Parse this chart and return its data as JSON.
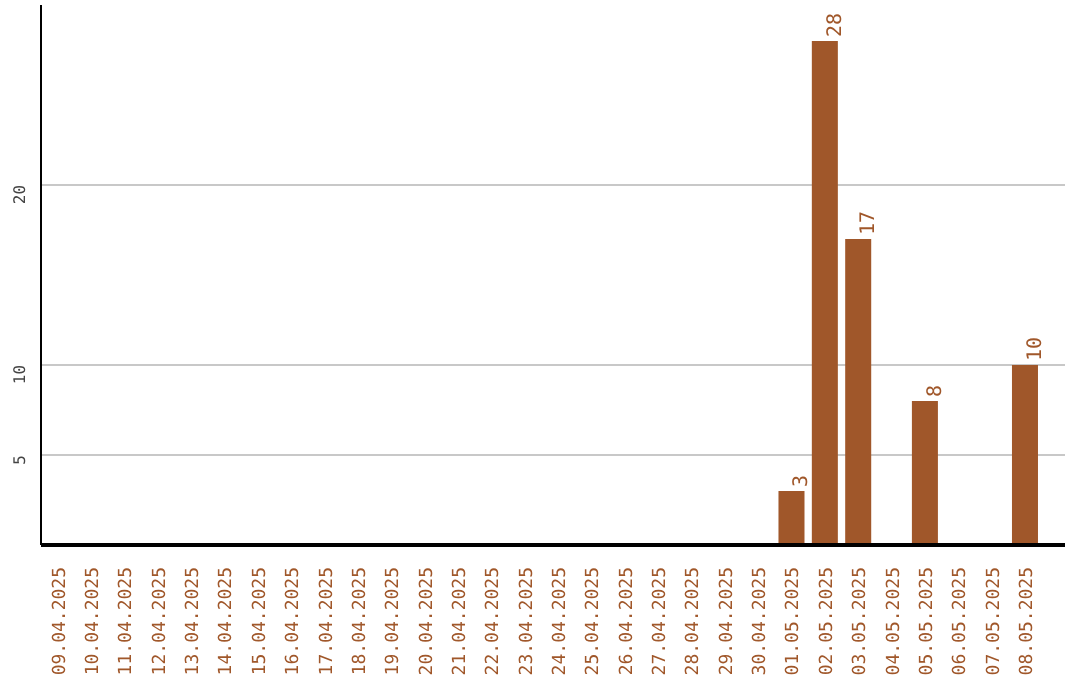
{
  "chart_data": {
    "type": "bar",
    "categories": [
      "09.04.2025",
      "10.04.2025",
      "11.04.2025",
      "12.04.2025",
      "13.04.2025",
      "14.04.2025",
      "15.04.2025",
      "16.04.2025",
      "17.04.2025",
      "18.04.2025",
      "19.04.2025",
      "20.04.2025",
      "21.04.2025",
      "22.04.2025",
      "23.04.2025",
      "24.04.2025",
      "25.04.2025",
      "26.04.2025",
      "27.04.2025",
      "28.04.2025",
      "29.04.2025",
      "30.04.2025",
      "01.05.2025",
      "02.05.2025",
      "03.05.2025",
      "04.05.2025",
      "05.05.2025",
      "06.05.2025",
      "07.05.2025",
      "08.05.2025"
    ],
    "values": [
      0,
      0,
      0,
      0,
      0,
      0,
      0,
      0,
      0,
      0,
      0,
      0,
      0,
      0,
      0,
      0,
      0,
      0,
      0,
      0,
      0,
      0,
      3,
      28,
      17,
      0,
      8,
      0,
      0,
      10
    ],
    "value_labels": [
      null,
      null,
      null,
      null,
      null,
      null,
      null,
      null,
      null,
      null,
      null,
      null,
      null,
      null,
      null,
      null,
      null,
      null,
      null,
      null,
      null,
      null,
      "3",
      "28",
      "17",
      null,
      "8",
      null,
      null,
      "10"
    ],
    "color": "#a0572a",
    "ylim": [
      0,
      30
    ],
    "yticks": [
      5,
      10,
      20
    ],
    "grid": "y"
  }
}
